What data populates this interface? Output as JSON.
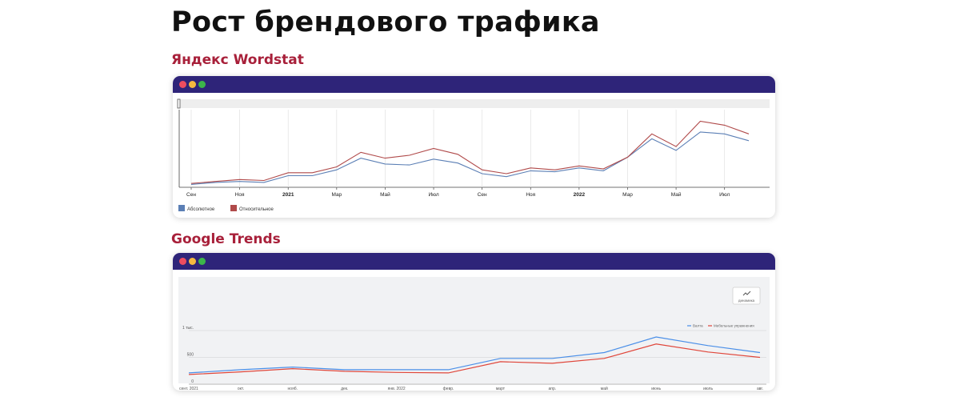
{
  "page": {
    "title": "Рост брендового трафика"
  },
  "sections": [
    {
      "title": "Яндекс Wordstat"
    },
    {
      "title": "Google Trends"
    }
  ],
  "chart_data": [
    {
      "type": "line",
      "x": [
        "Сен",
        "",
        "Ноя",
        "",
        "2021",
        "",
        "Мар",
        "",
        "Май",
        "",
        "Июл",
        "",
        "Сен",
        "",
        "Ноя",
        "",
        "2022",
        "",
        "Мар",
        "",
        "Май",
        "",
        "Июл",
        ""
      ],
      "bold_labels": [
        "2021",
        "2022"
      ],
      "series": [
        {
          "name": "Абсолютное",
          "color": "#5b7fb5",
          "values": [
            3,
            5,
            6,
            5,
            12,
            12,
            18,
            30,
            24,
            23,
            29,
            25,
            14,
            11,
            17,
            16,
            20,
            17,
            31,
            50,
            38,
            57,
            55,
            48
          ]
        },
        {
          "name": "Относительное",
          "color": "#b04a4a",
          "values": [
            4,
            6,
            8,
            7,
            15,
            15,
            21,
            36,
            30,
            33,
            40,
            34,
            18,
            14,
            20,
            18,
            22,
            19,
            31,
            55,
            42,
            68,
            64,
            55
          ]
        }
      ],
      "ylim": [
        0,
        80
      ],
      "grid": true,
      "legend": "bottom-left"
    },
    {
      "type": "line",
      "categories": [
        "сент. 2021",
        "окт.",
        "нояб.",
        "дек.",
        "янв. 2022",
        "февр.",
        "март",
        "апр.",
        "май",
        "июнь",
        "июль",
        "авг."
      ],
      "y_ticks": [
        "0",
        "500",
        "1 тыс."
      ],
      "ylim": [
        0,
        1000
      ],
      "series": [
        {
          "name": "Валта",
          "color": "#4a8fe8",
          "values": [
            210,
            270,
            320,
            270,
            270,
            270,
            480,
            480,
            590,
            880,
            720,
            590
          ]
        },
        {
          "name": "Мебельные упражнения",
          "color": "#e0463a",
          "values": [
            180,
            230,
            290,
            240,
            220,
            210,
            420,
            390,
            480,
            750,
            600,
            500
          ]
        }
      ],
      "grid": true,
      "legend": "top-right",
      "button_label": "динамика",
      "button_icon": "trend-icon"
    }
  ]
}
